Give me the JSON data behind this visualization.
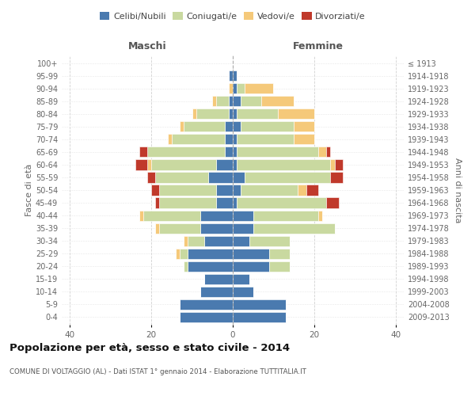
{
  "age_groups": [
    "0-4",
    "5-9",
    "10-14",
    "15-19",
    "20-24",
    "25-29",
    "30-34",
    "35-39",
    "40-44",
    "45-49",
    "50-54",
    "55-59",
    "60-64",
    "65-69",
    "70-74",
    "75-79",
    "80-84",
    "85-89",
    "90-94",
    "95-99",
    "100+"
  ],
  "birth_years": [
    "2009-2013",
    "2004-2008",
    "1999-2003",
    "1994-1998",
    "1989-1993",
    "1984-1988",
    "1979-1983",
    "1974-1978",
    "1969-1973",
    "1964-1968",
    "1959-1963",
    "1954-1958",
    "1949-1953",
    "1944-1948",
    "1939-1943",
    "1934-1938",
    "1929-1933",
    "1924-1928",
    "1919-1923",
    "1914-1918",
    "≤ 1913"
  ],
  "maschi": {
    "celibi": [
      13,
      13,
      8,
      7,
      11,
      11,
      7,
      8,
      8,
      4,
      4,
      6,
      4,
      2,
      2,
      2,
      1,
      1,
      0,
      1,
      0
    ],
    "coniugati": [
      0,
      0,
      0,
      0,
      1,
      2,
      4,
      10,
      14,
      14,
      14,
      13,
      16,
      19,
      13,
      10,
      8,
      3,
      0,
      0,
      0
    ],
    "vedovi": [
      0,
      0,
      0,
      0,
      0,
      1,
      1,
      1,
      1,
      0,
      0,
      0,
      1,
      0,
      1,
      1,
      1,
      1,
      1,
      0,
      0
    ],
    "divorziati": [
      0,
      0,
      0,
      0,
      0,
      0,
      0,
      0,
      0,
      1,
      2,
      2,
      3,
      2,
      0,
      0,
      0,
      0,
      0,
      0,
      0
    ]
  },
  "femmine": {
    "nubili": [
      13,
      13,
      5,
      4,
      9,
      9,
      4,
      5,
      5,
      1,
      2,
      3,
      1,
      1,
      1,
      2,
      1,
      2,
      1,
      1,
      0
    ],
    "coniugate": [
      0,
      0,
      0,
      0,
      5,
      5,
      10,
      20,
      16,
      22,
      14,
      21,
      23,
      20,
      14,
      13,
      10,
      5,
      2,
      0,
      0
    ],
    "vedove": [
      0,
      0,
      0,
      0,
      0,
      0,
      0,
      0,
      1,
      0,
      2,
      0,
      1,
      2,
      5,
      5,
      9,
      8,
      7,
      0,
      0
    ],
    "divorziate": [
      0,
      0,
      0,
      0,
      0,
      0,
      0,
      0,
      0,
      3,
      3,
      3,
      2,
      1,
      0,
      0,
      0,
      0,
      0,
      0,
      0
    ]
  },
  "colors": {
    "celibi_nubili": "#4a7aaf",
    "coniugati": "#c9d9a0",
    "vedovi": "#f5c97a",
    "divorziati": "#c0392b"
  },
  "title": "Popolazione per età, sesso e stato civile - 2014",
  "subtitle": "COMUNE DI VOLTAGGIO (AL) - Dati ISTAT 1° gennaio 2014 - Elaborazione TUTTITALIA.IT",
  "xlabel_left": "Maschi",
  "xlabel_right": "Femmine",
  "ylabel_left": "Fasce di età",
  "ylabel_right": "Anni di nascita",
  "xlim": 42,
  "background_color": "#ffffff",
  "grid_color": "#cccccc"
}
